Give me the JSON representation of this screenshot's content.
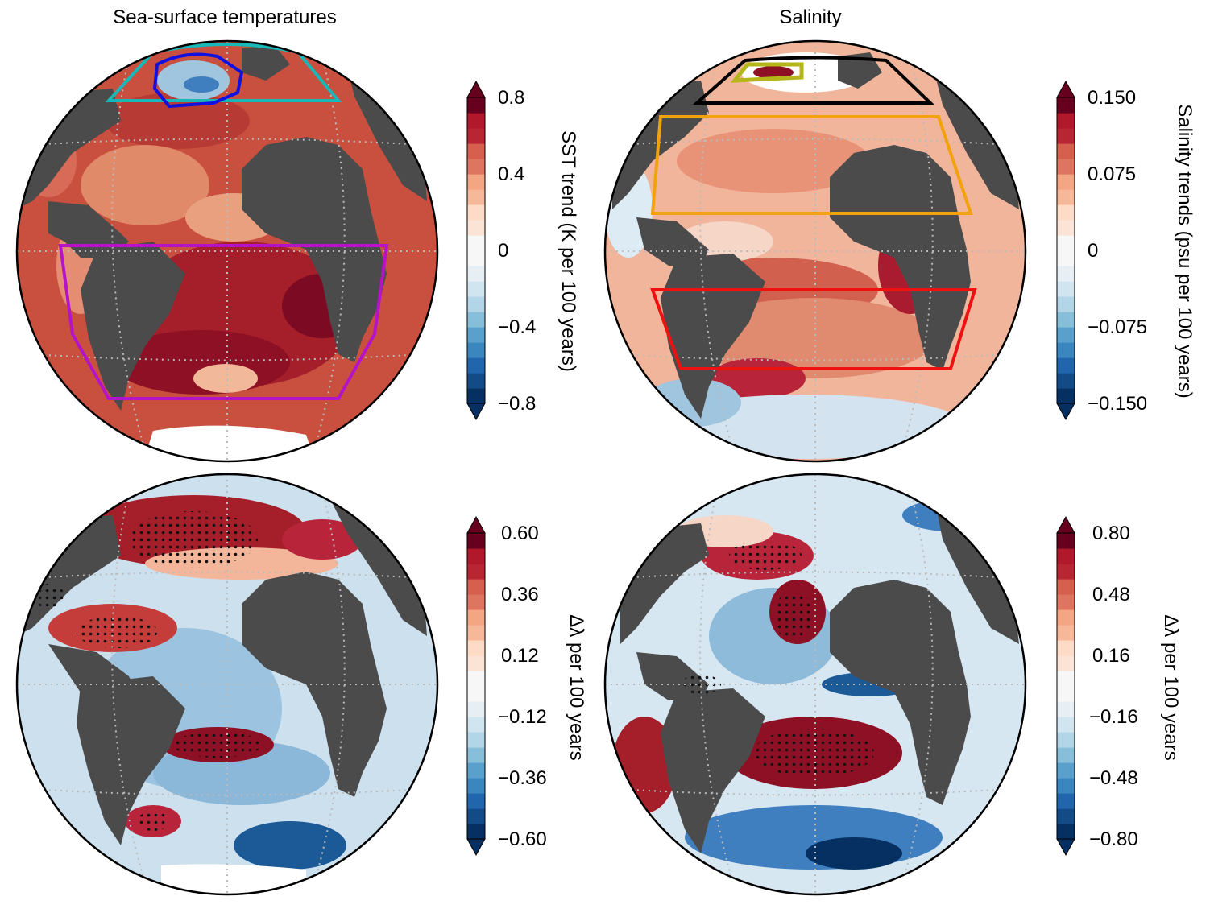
{
  "titles": {
    "left": "Sea-surface temperatures",
    "right": "Salinity"
  },
  "colors": {
    "land": "#4b4b4b",
    "ocean_warm": "#c44a3a",
    "ocean_cold": "#3f7fbf",
    "grid": "#bbbbbb",
    "box_cyan": "#19b7b7",
    "box_blue": "#1010e0",
    "box_magenta": "#b513c8",
    "box_black": "#000000",
    "box_olive": "#b5b619",
    "box_orange": "#f2a20c",
    "box_red": "#ee1111"
  },
  "colorbar_palette": [
    "#053061",
    "#134b87",
    "#2166ac",
    "#3a87c0",
    "#5aa0cd",
    "#87beda",
    "#b3d5e8",
    "#d1e5f0",
    "#e7eff5",
    "#f7f7f7",
    "#f7f7f7",
    "#fbe4d6",
    "#fddbc7",
    "#f7b799",
    "#f4a582",
    "#de7560",
    "#d6604d",
    "#b92633",
    "#b2182b",
    "#67001f"
  ],
  "colorbars": {
    "sst": {
      "label": "SST trend (K per 100 years)",
      "ticks": [
        "0.8",
        "0.4",
        "0",
        "−0.4",
        "−0.8"
      ],
      "range": [
        -0.8,
        0.8
      ]
    },
    "sal": {
      "label": "Salinity trends (psu per 100 years)",
      "ticks": [
        "0.150",
        "0.075",
        "0",
        "−0.075",
        "−0.150"
      ],
      "range": [
        -0.15,
        0.15
      ]
    },
    "dl_sst": {
      "label": "Δλ per 100 years",
      "ticks": [
        "0.60",
        "0.36",
        "0.12",
        "−0.12",
        "−0.36",
        "−0.60"
      ],
      "range": [
        -0.6,
        0.6
      ]
    },
    "dl_sal": {
      "label": "Δλ per 100 years",
      "ticks": [
        "0.80",
        "0.48",
        "0.16",
        "−0.16",
        "−0.48",
        "−0.80"
      ],
      "range": [
        -0.8,
        0.8
      ]
    }
  }
}
